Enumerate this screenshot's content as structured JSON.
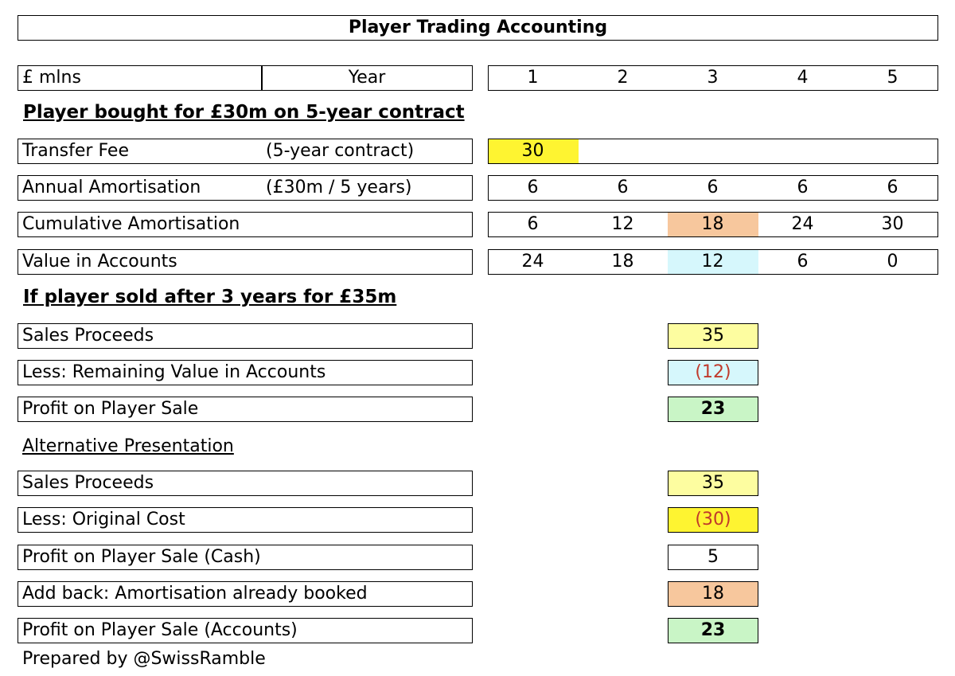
{
  "title": "Player Trading Accounting",
  "header_row": {
    "unit": "£ mlns",
    "year_label": "Year",
    "years": [
      "1",
      "2",
      "3",
      "4",
      "5"
    ]
  },
  "section1": {
    "heading": "Player bought for £30m on 5-year contract",
    "transfer_fee": {
      "label": "Transfer Fee",
      "note": "(5-year contract)",
      "values": [
        "30",
        "",
        "",
        "",
        ""
      ]
    },
    "annual_amortisation": {
      "label": "Annual Amortisation",
      "note": "(£30m / 5 years)",
      "values": [
        "6",
        "6",
        "6",
        "6",
        "6"
      ]
    },
    "cumulative_amortisation": {
      "label": "Cumulative Amortisation",
      "values": [
        "6",
        "12",
        "18",
        "24",
        "30"
      ]
    },
    "value_in_accounts": {
      "label": "Value in Accounts",
      "values": [
        "24",
        "18",
        "12",
        "6",
        "0"
      ]
    }
  },
  "section2": {
    "heading": "If player sold after 3 years for £35m",
    "rows": [
      {
        "label": "Sales Proceeds",
        "value": "35"
      },
      {
        "label": "Less: Remaining Value in Accounts",
        "value": "(12)"
      },
      {
        "label": "Profit on Player Sale",
        "value": "23"
      }
    ]
  },
  "section3": {
    "heading": "Alternative Presentation",
    "rows": [
      {
        "label": "Sales Proceeds",
        "value": "35"
      },
      {
        "label": "Less: Original Cost",
        "value": "(30)"
      },
      {
        "label": "Profit on Player Sale (Cash)",
        "value": "5"
      },
      {
        "label": "Add back: Amortisation already booked",
        "value": "18"
      },
      {
        "label": "Profit on Player Sale (Accounts)",
        "value": "23"
      }
    ]
  },
  "footer": "Prepared by @SwissRamble",
  "colors": {
    "yellow_strong": "#fef431",
    "yellow_light": "#fdfda0",
    "peach": "#f7c79d",
    "light_blue": "#d6f7fc",
    "light_green": "#c9f5c6",
    "negative_text": "#c0392b"
  }
}
